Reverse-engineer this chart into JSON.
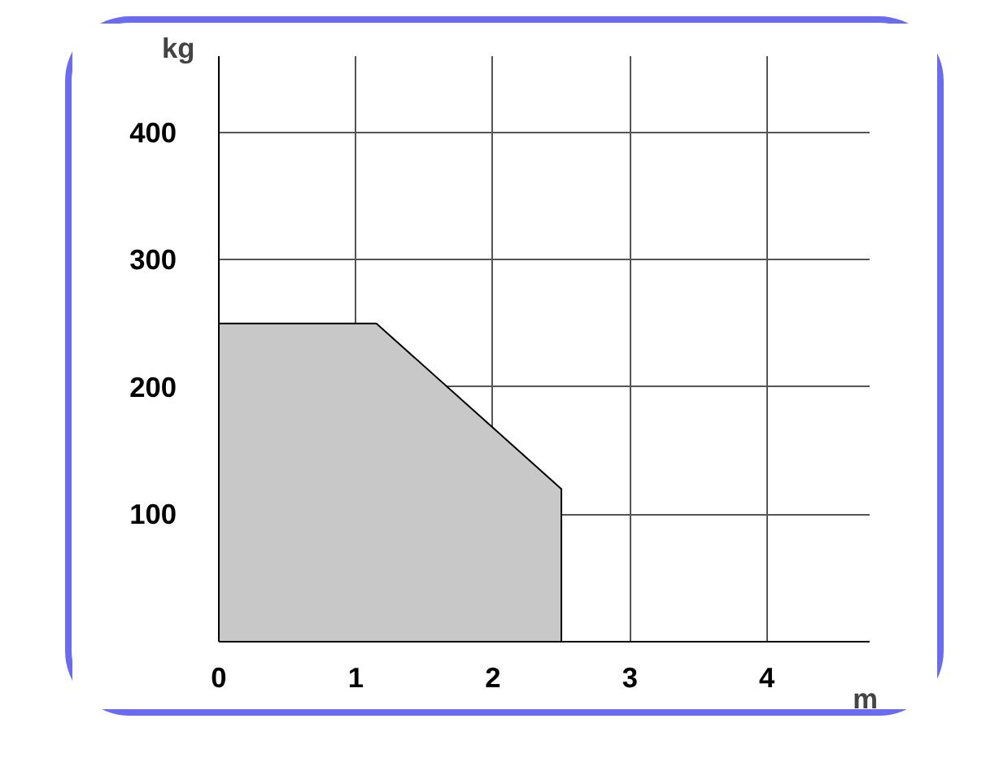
{
  "chart_data": {
    "type": "area",
    "xlabel": "m",
    "ylabel": "kg",
    "x": [
      0,
      1.15,
      2.5
    ],
    "series": [
      {
        "color": "#c8c8c8",
        "values": [
          250,
          250,
          120
        ]
      }
    ],
    "xlim": [
      0,
      4.75
    ],
    "ylim": [
      0,
      460
    ],
    "xticks": [
      0,
      1,
      2,
      3,
      4
    ],
    "yticks": [
      100,
      200,
      300,
      400
    ],
    "grid": true
  }
}
